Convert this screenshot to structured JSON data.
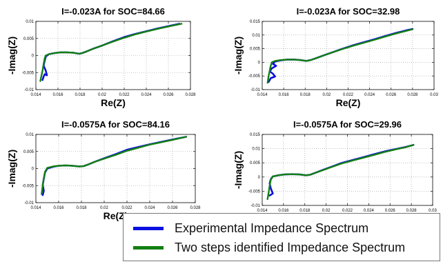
{
  "colors": {
    "experimental": "#0a10e0",
    "identified": "#137f13"
  },
  "legend": {
    "experimental_label": "Experimental Impedance Spectrum",
    "identified_label": "Two steps identified Impedance Spectrum"
  },
  "chart_data": [
    {
      "type": "line",
      "title": "I=-0.023A for SOC=84.66",
      "xlabel": "Re(Z)",
      "ylabel": "-Imag(Z)",
      "xlim": [
        0.014,
        0.028
      ],
      "ylim": [
        -0.01,
        0.01
      ],
      "xticks": [
        0.014,
        0.016,
        0.018,
        0.02,
        0.022,
        0.024,
        0.026,
        0.028
      ],
      "xtick_labels": [
        "0.014",
        "0.016",
        "0.018",
        "0.02",
        "0.022",
        "0.024",
        "0.026",
        "0.028"
      ],
      "yticks": [
        -0.01,
        -0.005,
        0,
        0.005,
        0.01
      ],
      "ytick_labels": [
        "-0.01",
        "-0.005",
        "0",
        "0.005",
        "0.01"
      ],
      "grid": true,
      "series": [
        {
          "name": "Experimental Impedance Spectrum",
          "x": [
            0.0146,
            0.0147,
            0.0148,
            0.015,
            0.0149,
            0.0147,
            0.0148,
            0.0149,
            0.0152,
            0.0157,
            0.0162,
            0.0168,
            0.0174,
            0.0179,
            0.0182,
            0.0186,
            0.0192,
            0.02,
            0.021,
            0.022,
            0.023,
            0.024,
            0.025,
            0.026,
            0.027
          ],
          "y": [
            -0.0072,
            -0.0062,
            -0.0055,
            -0.0058,
            -0.0045,
            -0.003,
            -0.0015,
            -0.0003,
            0.0004,
            0.0007,
            0.0009,
            0.0009,
            0.0008,
            0.0005,
            0.0007,
            0.0012,
            0.002,
            0.0029,
            0.0042,
            0.0054,
            0.0063,
            0.0071,
            0.0079,
            0.0086,
            0.0093
          ]
        },
        {
          "name": "Two steps identified Impedance Spectrum",
          "x": [
            0.0144,
            0.0146,
            0.0147,
            0.0148,
            0.0149,
            0.0152,
            0.0157,
            0.0162,
            0.0168,
            0.0174,
            0.0179,
            0.0182,
            0.0186,
            0.0192,
            0.02,
            0.021,
            0.022,
            0.023,
            0.024,
            0.025,
            0.026,
            0.0272
          ],
          "y": [
            -0.0075,
            -0.0045,
            -0.0025,
            -0.0008,
            0.0,
            0.0004,
            0.0007,
            0.0009,
            0.0009,
            0.0008,
            0.0005,
            0.0007,
            0.0012,
            0.002,
            0.0029,
            0.0041,
            0.0052,
            0.0062,
            0.007,
            0.0078,
            0.0085,
            0.0093
          ]
        }
      ]
    },
    {
      "type": "line",
      "title": "I=-0.023A for SOC=32.98",
      "xlabel": "Re(Z)",
      "ylabel": "-Imag(Z)",
      "xlim": [
        0.014,
        0.03
      ],
      "ylim": [
        -0.01,
        0.015
      ],
      "xticks": [
        0.014,
        0.016,
        0.018,
        0.02,
        0.022,
        0.024,
        0.026,
        0.028,
        0.03
      ],
      "xtick_labels": [
        "0.014",
        "0.016",
        "0.018",
        "0.02",
        "0.022",
        "0.024",
        "0.026",
        "0.028",
        "0.03"
      ],
      "yticks": [
        -0.01,
        -0.005,
        0,
        0.005,
        0.01,
        0.015
      ],
      "ytick_labels": [
        "-0.01",
        "-0.005",
        "0",
        "0.005",
        "0.01",
        "0.015"
      ],
      "grid": true,
      "series": [
        {
          "name": "Experimental Impedance Spectrum",
          "x": [
            0.0146,
            0.0148,
            0.0152,
            0.015,
            0.0147,
            0.0149,
            0.0153,
            0.015,
            0.0152,
            0.0157,
            0.0163,
            0.017,
            0.0176,
            0.0181,
            0.0185,
            0.019,
            0.0197,
            0.0205,
            0.0215,
            0.0225,
            0.0235,
            0.0245,
            0.0255,
            0.0265,
            0.0275,
            0.028
          ],
          "y": [
            -0.0072,
            -0.0058,
            -0.0052,
            -0.0042,
            -0.0033,
            -0.0022,
            -0.0013,
            -0.0006,
            0.0003,
            0.0007,
            0.001,
            0.001,
            0.0008,
            0.0005,
            0.0008,
            0.0015,
            0.0025,
            0.0036,
            0.005,
            0.0063,
            0.0074,
            0.0085,
            0.0097,
            0.0108,
            0.0118,
            0.0122
          ]
        },
        {
          "name": "Two steps identified Impedance Spectrum",
          "x": [
            0.0145,
            0.0146,
            0.0147,
            0.0148,
            0.0149,
            0.0152,
            0.0157,
            0.0163,
            0.017,
            0.0176,
            0.0181,
            0.0185,
            0.019,
            0.0197,
            0.0205,
            0.0215,
            0.0225,
            0.0235,
            0.0245,
            0.0255,
            0.0265,
            0.0275,
            0.028
          ],
          "y": [
            -0.0075,
            -0.005,
            -0.003,
            -0.0012,
            0.0,
            0.0005,
            0.0008,
            0.001,
            0.001,
            0.0008,
            0.0005,
            0.0008,
            0.0015,
            0.0025,
            0.0036,
            0.0049,
            0.0061,
            0.0072,
            0.0083,
            0.0095,
            0.0106,
            0.0116,
            0.0121
          ]
        }
      ]
    },
    {
      "type": "line",
      "title": "I=-0.0575A for SOC=84.16",
      "xlabel": "Re(Z)",
      "ylabel": "-Imag(Z)",
      "xlim": [
        0.014,
        0.028
      ],
      "ylim": [
        -0.01,
        0.01
      ],
      "xticks": [
        0.014,
        0.016,
        0.018,
        0.02,
        0.022,
        0.024,
        0.026,
        0.028
      ],
      "xtick_labels": [
        "0.014",
        "0.016",
        "0.018",
        "0.02",
        "0.022",
        "0.024",
        "0.026",
        "0.028"
      ],
      "yticks": [
        -0.01,
        -0.005,
        0,
        0.005,
        0.01
      ],
      "ytick_labels": [
        "-0.01",
        "-0.005",
        "0",
        "0.005",
        "0.01"
      ],
      "grid": true,
      "series": [
        {
          "name": "Experimental Impedance Spectrum",
          "x": [
            0.0146,
            0.0147,
            0.0146,
            0.0147,
            0.0148,
            0.015,
            0.0155,
            0.016,
            0.0166,
            0.0172,
            0.0178,
            0.0182,
            0.0186,
            0.0192,
            0.02,
            0.021,
            0.022,
            0.023,
            0.024,
            0.025,
            0.026,
            0.0272
          ],
          "y": [
            -0.0078,
            -0.0065,
            -0.0048,
            -0.003,
            -0.0012,
            0.0,
            0.0005,
            0.0008,
            0.0009,
            0.0008,
            0.0006,
            0.0007,
            0.0012,
            0.002,
            0.003,
            0.0042,
            0.0055,
            0.0063,
            0.0071,
            0.0078,
            0.0085,
            0.0093
          ]
        },
        {
          "name": "Two steps identified Impedance Spectrum",
          "x": [
            0.0145,
            0.0146,
            0.0147,
            0.0148,
            0.015,
            0.0155,
            0.016,
            0.0166,
            0.0172,
            0.0178,
            0.0182,
            0.0186,
            0.0192,
            0.02,
            0.021,
            0.022,
            0.023,
            0.024,
            0.025,
            0.026,
            0.0272
          ],
          "y": [
            -0.0075,
            -0.005,
            -0.0028,
            -0.001,
            0.0002,
            0.0006,
            0.0008,
            0.0009,
            0.0008,
            0.0006,
            0.0007,
            0.0012,
            0.002,
            0.0029,
            0.004,
            0.0052,
            0.0061,
            0.007,
            0.0077,
            0.0084,
            0.0093
          ]
        }
      ]
    },
    {
      "type": "line",
      "title": "I=-0.0575A for SOC=29.96",
      "xlabel": "Re(Z)",
      "ylabel": "-Imag(Z)",
      "xlim": [
        0.014,
        0.03
      ],
      "ylim": [
        -0.01,
        0.015
      ],
      "xticks": [
        0.014,
        0.016,
        0.018,
        0.02,
        0.022,
        0.024,
        0.026,
        0.028,
        0.03
      ],
      "xtick_labels": [
        "0.014",
        "0.016",
        "0.018",
        "0.02",
        "0.022",
        "0.024",
        "0.026",
        "0.028",
        "0.03"
      ],
      "yticks": [
        -0.01,
        -0.005,
        0,
        0.005,
        0.01,
        0.015
      ],
      "ytick_labels": [
        "-0.01",
        "-0.005",
        "0",
        "0.005",
        "0.01",
        "0.015"
      ],
      "grid": true,
      "series": [
        {
          "name": "Experimental Impedance Spectrum",
          "x": [
            0.0147,
            0.015,
            0.0148,
            0.0147,
            0.0148,
            0.015,
            0.0155,
            0.0161,
            0.0168,
            0.0175,
            0.0181,
            0.0185,
            0.019,
            0.0197,
            0.0205,
            0.0215,
            0.0225,
            0.0235,
            0.0245,
            0.0255,
            0.0265,
            0.0275,
            0.0282
          ],
          "y": [
            -0.0065,
            -0.0058,
            -0.004,
            -0.0022,
            -0.0008,
            0.0002,
            0.0006,
            0.0009,
            0.001,
            0.0009,
            0.0006,
            0.0008,
            0.0015,
            0.0025,
            0.0036,
            0.005,
            0.006,
            0.007,
            0.008,
            0.009,
            0.0098,
            0.0106,
            0.0113
          ]
        },
        {
          "name": "Two steps identified Impedance Spectrum",
          "x": [
            0.0145,
            0.0146,
            0.0147,
            0.0148,
            0.015,
            0.0155,
            0.0161,
            0.0168,
            0.0175,
            0.0181,
            0.0185,
            0.019,
            0.0197,
            0.0205,
            0.0215,
            0.0225,
            0.0235,
            0.0245,
            0.0255,
            0.0265,
            0.0275,
            0.0282
          ],
          "y": [
            -0.0078,
            -0.0055,
            -0.003,
            -0.001,
            0.0002,
            0.0006,
            0.0009,
            0.001,
            0.0009,
            0.0006,
            0.0008,
            0.0015,
            0.0024,
            0.0035,
            0.0048,
            0.0058,
            0.0068,
            0.0078,
            0.0088,
            0.0097,
            0.0105,
            0.0113
          ]
        }
      ]
    }
  ]
}
